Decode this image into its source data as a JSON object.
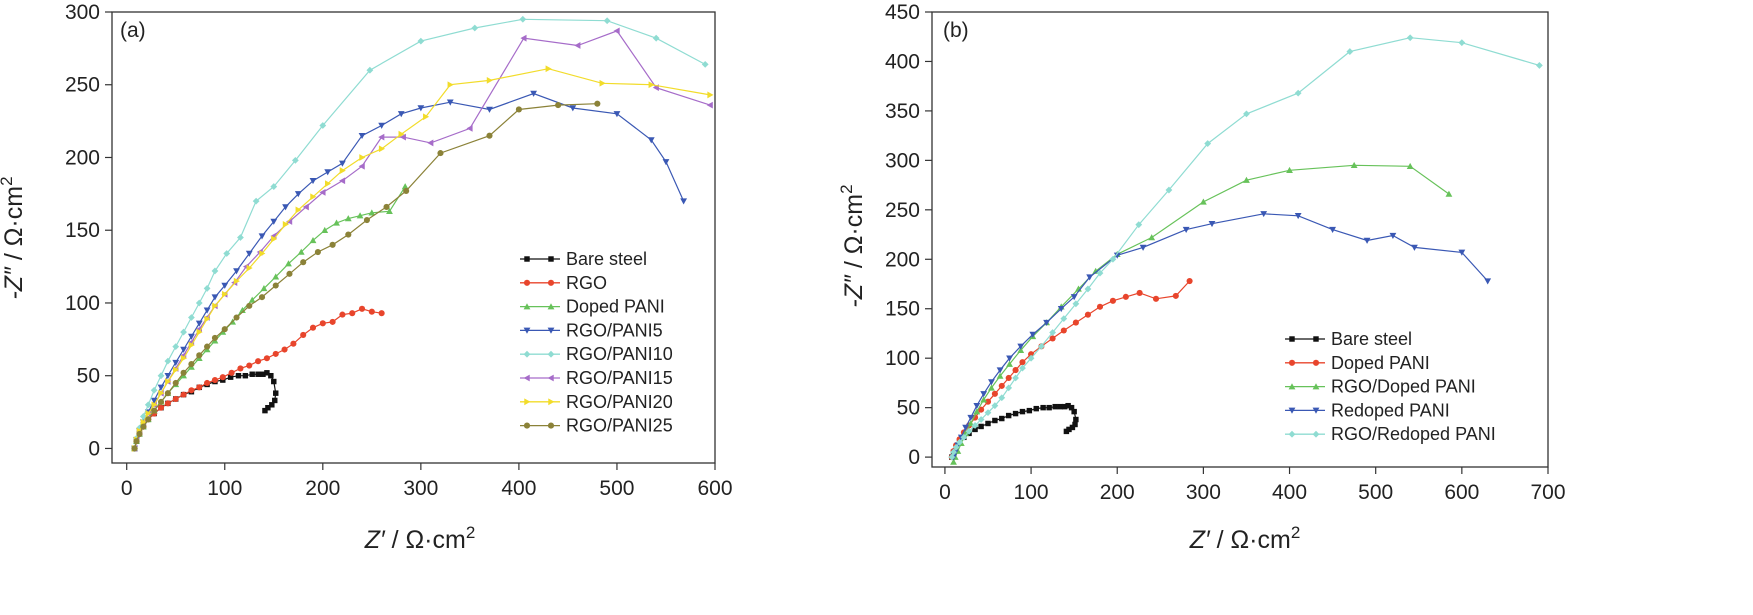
{
  "chart_data": [
    {
      "type": "scatter",
      "panel_label": "(a)",
      "xlabel_main": "Z′",
      "xlabel_unit": " / Ω·cm",
      "xlabel_sup": "2",
      "ylabel_main": "-Z″",
      "ylabel_unit": " / Ω·cm",
      "ylabel_sup": "2",
      "xlim": [
        -15,
        600
      ],
      "ylim": [
        -10,
        300
      ],
      "x_ticks": [
        0,
        100,
        200,
        300,
        400,
        500,
        600
      ],
      "y_ticks": [
        0,
        50,
        100,
        150,
        200,
        250,
        300
      ],
      "x_tick_labels": [
        "0",
        "100",
        "200",
        "300",
        "400",
        "500",
        "600"
      ],
      "y_tick_labels": [
        "0",
        "50",
        "100",
        "150",
        "200",
        "250",
        "300"
      ],
      "legend_position": "center-right",
      "series": [
        {
          "name": "Bare steel",
          "color": "#111111",
          "marker": "square",
          "x": [
            8,
            10,
            13,
            17,
            22,
            28,
            35,
            42,
            50,
            58,
            66,
            74,
            82,
            90,
            98,
            106,
            114,
            121,
            128,
            134,
            139,
            143,
            147,
            150,
            152,
            151,
            148,
            144,
            141
          ],
          "y": [
            0,
            5,
            10,
            15,
            20,
            24,
            28,
            31,
            34,
            37,
            39,
            42,
            44,
            46,
            47,
            49,
            50,
            50,
            51,
            51,
            51,
            52,
            50,
            46,
            38,
            33,
            30,
            28,
            26
          ]
        },
        {
          "name": "RGO",
          "color": "#e8452c",
          "marker": "circle",
          "x": [
            8,
            10,
            13,
            17,
            22,
            28,
            35,
            42,
            50,
            58,
            66,
            74,
            82,
            90,
            98,
            107,
            116,
            125,
            134,
            143,
            152,
            161,
            170,
            180,
            190,
            200,
            210,
            220,
            230,
            240,
            250,
            260
          ],
          "y": [
            0,
            5,
            10,
            15,
            20,
            24,
            28,
            31,
            34,
            37,
            40,
            42,
            45,
            47,
            49,
            52,
            55,
            57,
            60,
            62,
            65,
            68,
            72,
            78,
            83,
            86,
            87,
            92,
            93,
            96,
            94,
            93
          ]
        },
        {
          "name": "Doped PANI",
          "color": "#67c25a",
          "marker": "triangle-up",
          "x": [
            8,
            10,
            13,
            17,
            22,
            28,
            35,
            42,
            50,
            58,
            66,
            74,
            82,
            90,
            98,
            108,
            118,
            128,
            140,
            152,
            165,
            178,
            190,
            202,
            214,
            226,
            238,
            250,
            268,
            284
          ],
          "y": [
            0,
            5,
            10,
            15,
            20,
            26,
            32,
            38,
            44,
            50,
            56,
            62,
            68,
            74,
            80,
            87,
            95,
            102,
            110,
            118,
            127,
            135,
            143,
            150,
            155,
            158,
            160,
            162,
            163,
            180
          ]
        },
        {
          "name": "RGO/PANI5",
          "color": "#3a58b4",
          "marker": "triangle-down",
          "x": [
            8,
            10,
            13,
            17,
            22,
            28,
            35,
            42,
            50,
            58,
            66,
            74,
            82,
            90,
            100,
            112,
            125,
            138,
            150,
            162,
            175,
            190,
            205,
            220,
            240,
            260,
            280,
            300,
            330,
            370,
            415,
            455,
            500,
            535,
            550,
            568
          ],
          "y": [
            0,
            6,
            12,
            18,
            25,
            33,
            42,
            50,
            59,
            68,
            77,
            86,
            95,
            104,
            112,
            122,
            134,
            146,
            156,
            166,
            175,
            184,
            190,
            196,
            215,
            222,
            230,
            234,
            238,
            233,
            244,
            234,
            230,
            212,
            197,
            170
          ]
        },
        {
          "name": "RGO/PANI10",
          "color": "#8fdcd2",
          "marker": "diamond",
          "x": [
            8,
            10,
            13,
            17,
            22,
            28,
            35,
            42,
            50,
            58,
            66,
            74,
            82,
            90,
            102,
            116,
            132,
            150,
            172,
            200,
            248,
            300,
            355,
            404,
            490,
            540,
            590
          ],
          "y": [
            0,
            7,
            14,
            22,
            30,
            40,
            50,
            60,
            70,
            80,
            90,
            100,
            110,
            122,
            134,
            145,
            170,
            180,
            198,
            222,
            260,
            280,
            289,
            295,
            294,
            282,
            264
          ]
        },
        {
          "name": "RGO/PANI15",
          "color": "#a66cc9",
          "marker": "triangle-left",
          "x": [
            8,
            10,
            13,
            17,
            22,
            28,
            35,
            42,
            50,
            58,
            66,
            74,
            82,
            90,
            100,
            110,
            122,
            136,
            150,
            166,
            183,
            200,
            220,
            240,
            260,
            282,
            310,
            350,
            405,
            460,
            500,
            540,
            595
          ],
          "y": [
            0,
            6,
            12,
            18,
            24,
            30,
            38,
            46,
            55,
            64,
            73,
            82,
            90,
            98,
            106,
            114,
            125,
            135,
            146,
            156,
            166,
            176,
            184,
            194,
            214,
            214,
            210,
            220,
            282,
            277,
            287,
            248,
            236
          ]
        },
        {
          "name": "RGO/PANI20",
          "color": "#f2dc2a",
          "marker": "triangle-right",
          "x": [
            8,
            10,
            13,
            17,
            22,
            28,
            35,
            42,
            50,
            58,
            66,
            74,
            82,
            90,
            100,
            112,
            125,
            138,
            150,
            162,
            175,
            190,
            205,
            220,
            240,
            260,
            280,
            305,
            330,
            370,
            430,
            485,
            535,
            595
          ],
          "y": [
            0,
            6,
            12,
            18,
            24,
            30,
            38,
            46,
            54,
            62,
            71,
            80,
            89,
            98,
            106,
            115,
            124,
            134,
            144,
            154,
            164,
            173,
            182,
            191,
            200,
            206,
            216,
            228,
            250,
            253,
            261,
            251,
            250,
            243
          ]
        },
        {
          "name": "RGO/PANI25",
          "color": "#8b8238",
          "marker": "circle",
          "x": [
            8,
            10,
            13,
            17,
            22,
            28,
            35,
            42,
            50,
            58,
            66,
            74,
            82,
            90,
            100,
            112,
            125,
            138,
            152,
            166,
            180,
            195,
            210,
            226,
            245,
            265,
            285,
            320,
            370,
            400,
            440,
            480
          ],
          "y": [
            0,
            5,
            10,
            15,
            20,
            26,
            32,
            38,
            45,
            52,
            58,
            64,
            70,
            76,
            82,
            90,
            98,
            104,
            112,
            120,
            128,
            135,
            140,
            147,
            157,
            166,
            177,
            203,
            215,
            233,
            236,
            237
          ]
        }
      ]
    },
    {
      "type": "scatter",
      "panel_label": "(b)",
      "xlabel_main": "Z′",
      "xlabel_unit": " / Ω·cm",
      "xlabel_sup": "2",
      "ylabel_main": "-Z″",
      "ylabel_unit": " / Ω·cm",
      "ylabel_sup": "2",
      "xlim": [
        -15,
        700
      ],
      "ylim": [
        -10,
        450
      ],
      "x_ticks": [
        0,
        100,
        200,
        300,
        400,
        500,
        600,
        700
      ],
      "y_ticks": [
        0,
        50,
        100,
        150,
        200,
        250,
        300,
        350,
        400,
        450
      ],
      "x_tick_labels": [
        "0",
        "100",
        "200",
        "300",
        "400",
        "500",
        "600",
        "700"
      ],
      "y_tick_labels": [
        "0",
        "50",
        "100",
        "150",
        "200",
        "250",
        "300",
        "350",
        "400",
        "450"
      ],
      "legend_position": "bottom-right",
      "series": [
        {
          "name": "Bare steel",
          "color": "#111111",
          "marker": "square",
          "x": [
            8,
            10,
            13,
            17,
            22,
            28,
            35,
            42,
            50,
            58,
            66,
            74,
            82,
            90,
            98,
            106,
            114,
            121,
            128,
            134,
            139,
            143,
            147,
            150,
            152,
            151,
            148,
            144,
            141
          ],
          "y": [
            0,
            5,
            10,
            15,
            20,
            24,
            28,
            31,
            34,
            37,
            39,
            42,
            44,
            46,
            47,
            49,
            50,
            50,
            51,
            51,
            51,
            52,
            50,
            46,
            38,
            33,
            30,
            28,
            26
          ]
        },
        {
          "name": "Doped PANI",
          "color": "#e8452c",
          "marker": "circle",
          "x": [
            8,
            10,
            13,
            17,
            22,
            28,
            35,
            42,
            50,
            58,
            66,
            74,
            82,
            90,
            100,
            112,
            125,
            138,
            152,
            166,
            180,
            195,
            210,
            226,
            245,
            268,
            284
          ],
          "y": [
            0,
            6,
            12,
            18,
            25,
            32,
            40,
            48,
            56,
            64,
            72,
            80,
            88,
            96,
            104,
            112,
            120,
            128,
            136,
            144,
            152,
            158,
            162,
            166,
            160,
            163,
            178
          ]
        },
        {
          "name": "RGO/Doped PANI",
          "color": "#67c25a",
          "marker": "triangle-up",
          "x": [
            10,
            12,
            15,
            19,
            24,
            30,
            37,
            45,
            54,
            64,
            75,
            88,
            102,
            118,
            135,
            155,
            175,
            200,
            240,
            300,
            350,
            400,
            475,
            540,
            585
          ],
          "y": [
            -5,
            0,
            6,
            14,
            24,
            34,
            46,
            58,
            70,
            82,
            94,
            108,
            122,
            136,
            152,
            170,
            188,
            205,
            222,
            258,
            280,
            290,
            295,
            294,
            266
          ]
        },
        {
          "name": "Redoped PANI",
          "color": "#3a58b4",
          "marker": "triangle-down",
          "x": [
            10,
            12,
            15,
            19,
            24,
            30,
            37,
            45,
            54,
            64,
            75,
            88,
            102,
            118,
            135,
            150,
            168,
            200,
            230,
            280,
            310,
            370,
            410,
            450,
            490,
            520,
            545,
            600,
            630
          ],
          "y": [
            0,
            5,
            12,
            20,
            30,
            40,
            52,
            64,
            76,
            88,
            100,
            112,
            124,
            136,
            150,
            162,
            182,
            204,
            212,
            230,
            236,
            246,
            244,
            230,
            219,
            224,
            212,
            207,
            178
          ]
        },
        {
          "name": "RGO/Redoped PANI",
          "color": "#8fdcd2",
          "marker": "diamond",
          "x": [
            8,
            10,
            13,
            17,
            22,
            28,
            35,
            42,
            50,
            58,
            66,
            74,
            82,
            90,
            100,
            112,
            125,
            138,
            152,
            166,
            180,
            195,
            225,
            260,
            305,
            350,
            410,
            470,
            540,
            600,
            690
          ],
          "y": [
            0,
            5,
            10,
            15,
            20,
            26,
            32,
            38,
            45,
            52,
            60,
            70,
            80,
            90,
            100,
            112,
            126,
            140,
            155,
            170,
            186,
            200,
            235,
            270,
            317,
            347,
            368,
            410,
            424,
            419,
            396
          ]
        }
      ]
    }
  ]
}
